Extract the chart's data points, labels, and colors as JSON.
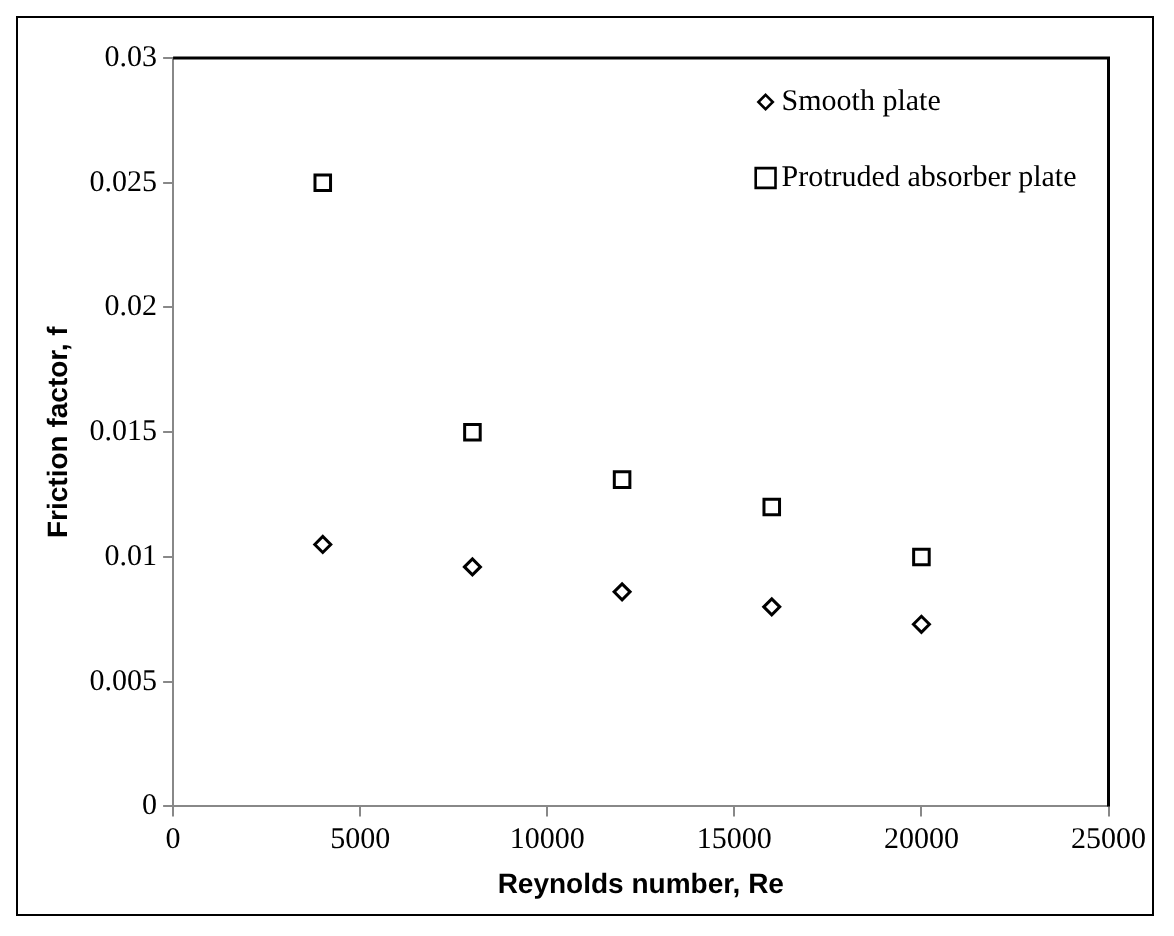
{
  "chart_data": {
    "type": "scatter",
    "xlabel": "Reynolds number, Re",
    "ylabel": "Friction factor, f",
    "x": [
      4000,
      8000,
      12000,
      16000,
      20000
    ],
    "series": [
      {
        "name": "Smooth plate",
        "color": "#000000",
        "marker": "diamond",
        "values": [
          0.0105,
          0.0096,
          0.0086,
          0.008,
          0.0073
        ]
      },
      {
        "name": "Protruded absorber plate",
        "color": "#000000",
        "marker": "square",
        "values": [
          0.025,
          0.015,
          0.0131,
          0.012,
          0.01
        ]
      }
    ],
    "xlim": [
      0,
      25000
    ],
    "xticks": [
      0,
      5000,
      10000,
      15000,
      20000,
      25000
    ],
    "ylim": [
      0,
      0.03
    ],
    "yticks": [
      0,
      0.005,
      0.01,
      0.015,
      0.02,
      0.025,
      0.03
    ],
    "grid": false,
    "legend": "top right"
  }
}
